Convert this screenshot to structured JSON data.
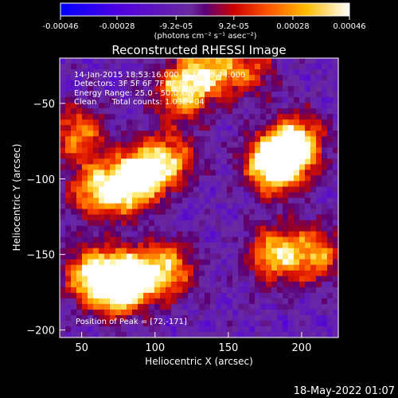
{
  "colorbar": {
    "tick_labels": [
      "-0.00046",
      "-0.00028",
      "-9.2e-05",
      "9.2e-05",
      "0.00028",
      "0.00046"
    ],
    "tick_values": [
      -0.00046,
      -0.00028,
      -9.2e-05,
      9.2e-05,
      0.00028,
      0.00046
    ],
    "range": [
      -0.00046,
      0.00046
    ],
    "units_label": "(photons cm⁻² s⁻¹ asec⁻²)"
  },
  "footer": {
    "timestamp": "18-May-2022 01:07"
  },
  "chart_data": {
    "type": "heatmap",
    "title": "Reconstructed RHESSI Image",
    "xlabel": "Heliocentric X (arcsec)",
    "ylabel": "Heliocentric Y (arcsec)",
    "xlim": [
      35,
      225
    ],
    "ylim": [
      -205,
      -20
    ],
    "xticks": [
      50,
      100,
      150,
      200
    ],
    "yticks": [
      -50,
      -100,
      -150,
      -200
    ],
    "xtick_labels": [
      "50",
      "100",
      "150",
      "200"
    ],
    "ytick_labels": [
      "−50",
      "−100",
      "−150",
      "−200"
    ],
    "annotations": [
      "14-Jan-2015 18:53:16.000 to 18:58:44.000",
      "Detectors: 3F 5F 6F 7F 8F 9F, Att 0",
      "Energy Range: 25.0 - 50.0 keV",
      "Clean      Total counts: 1.03E+04"
    ],
    "peak_label": "Position of Peak = [72,-171]",
    "peak_position": [
      72,
      -171
    ],
    "sources": [
      {
        "x": 72,
        "y": -171,
        "peak": 0.00046
      },
      {
        "x": 85,
        "y": -165,
        "peak": 0.00036
      },
      {
        "x": 55,
        "y": -163,
        "peak": 0.0003
      },
      {
        "x": 110,
        "y": -160,
        "peak": 0.0003
      },
      {
        "x": 60,
        "y": -108,
        "peak": 0.00034
      },
      {
        "x": 82,
        "y": -106,
        "peak": 0.0003
      },
      {
        "x": 90,
        "y": -95,
        "peak": 0.00026
      },
      {
        "x": 48,
        "y": -70,
        "peak": 0.00028
      },
      {
        "x": 110,
        "y": -88,
        "peak": 0.0003
      },
      {
        "x": 118,
        "y": -42,
        "peak": 0.00036
      },
      {
        "x": 135,
        "y": -28,
        "peak": 0.0003
      },
      {
        "x": 188,
        "y": -86,
        "peak": 0.00042
      },
      {
        "x": 178,
        "y": -92,
        "peak": 0.0003
      },
      {
        "x": 198,
        "y": -75,
        "peak": 0.00028
      },
      {
        "x": 182,
        "y": -150,
        "peak": 0.00036
      },
      {
        "x": 210,
        "y": -150,
        "peak": 0.00028
      },
      {
        "x": 163,
        "y": -28,
        "peak": 0.0002
      }
    ]
  }
}
